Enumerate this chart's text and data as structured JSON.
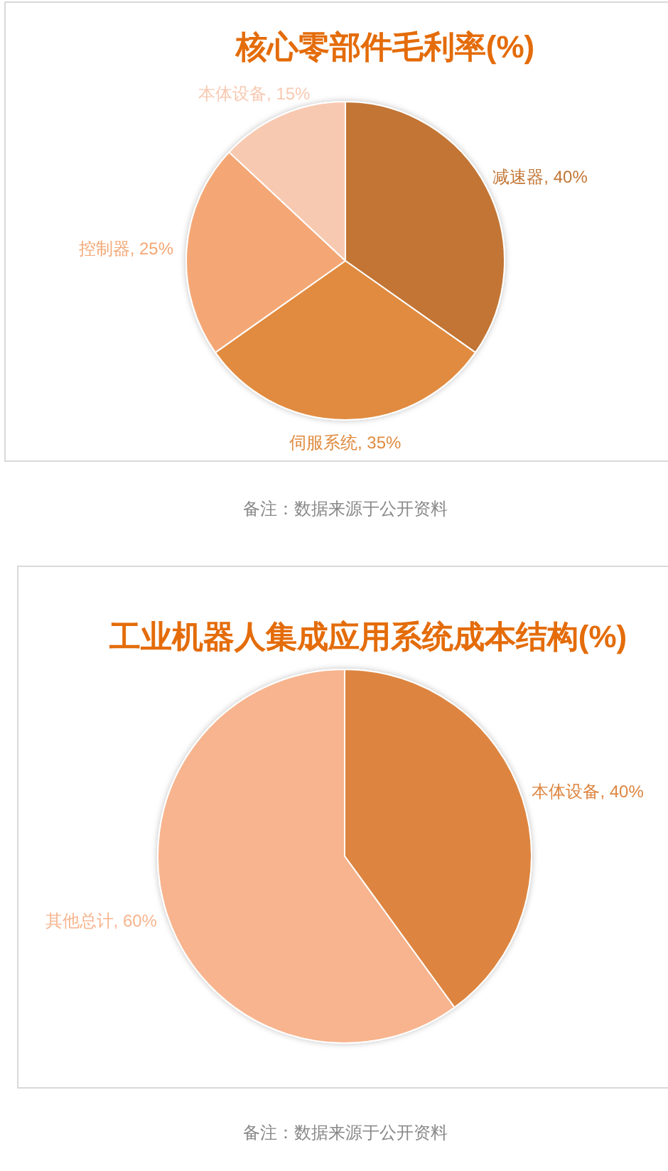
{
  "chart_data": [
    {
      "type": "pie",
      "title": "核心零部件毛利率(%)",
      "categories": [
        "减速器",
        "伺服系统",
        "控制器",
        "本体设备"
      ],
      "values": [
        40,
        35,
        25,
        15
      ],
      "value_labels": [
        "40%",
        "35%",
        "25%",
        "15%"
      ],
      "colors": [
        "#c27534",
        "#e08b3f",
        "#f4a775",
        "#f8c9b1"
      ],
      "annotations": [
        "备注：数据来源于公开资料"
      ]
    },
    {
      "type": "pie",
      "title": "工业机器人集成应用系统成本结构(%)",
      "categories": [
        "本体设备",
        "其他总计"
      ],
      "values": [
        40,
        60
      ],
      "value_labels": [
        "40%",
        "60%"
      ],
      "colors": [
        "#dd8540",
        "#f7b48e"
      ],
      "annotations": [
        "备注：数据来源于公开资料"
      ]
    }
  ]
}
